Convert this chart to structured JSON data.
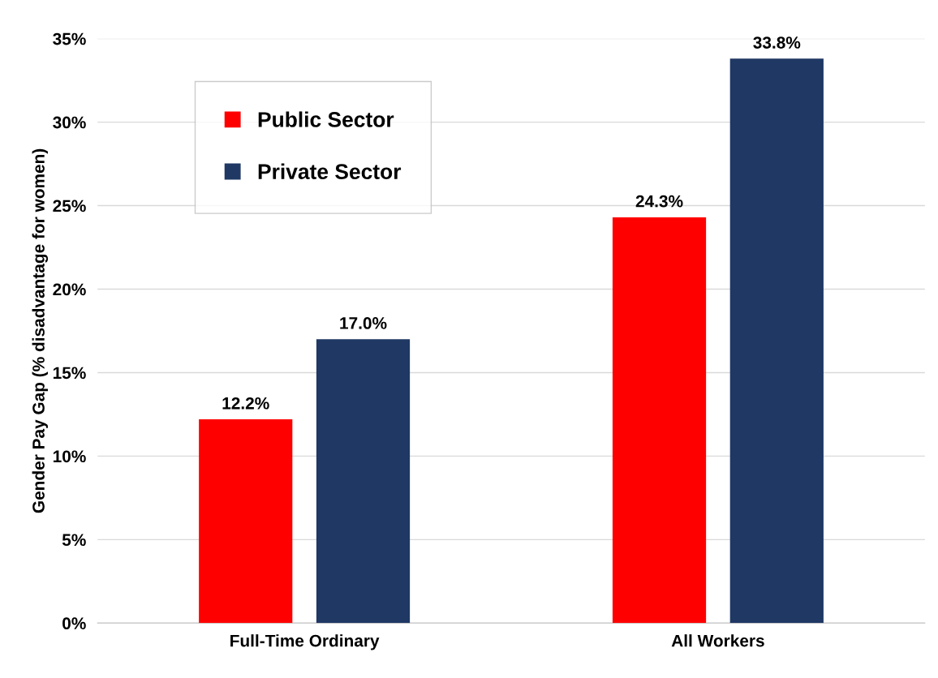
{
  "chart_data": {
    "type": "bar",
    "ylabel": "Gender Pay Gap (% disadvantage for women)",
    "categories": [
      "Full-Time Ordinary",
      "All Workers"
    ],
    "series": [
      {
        "name": "Public Sector",
        "color": "#ff0000",
        "values": [
          12.2,
          24.3
        ],
        "value_labels": [
          "12.2%",
          "24.3%"
        ]
      },
      {
        "name": "Private Sector",
        "color": "#1f3864",
        "values": [
          17.0,
          33.8
        ],
        "value_labels": [
          "17.0%",
          "33.8%"
        ]
      }
    ],
    "ylim": [
      0,
      35
    ],
    "yticks": [
      {
        "value": 0,
        "label": "0%"
      },
      {
        "value": 5,
        "label": "5%"
      },
      {
        "value": 10,
        "label": "10%"
      },
      {
        "value": 15,
        "label": "15%"
      },
      {
        "value": 20,
        "label": "20%"
      },
      {
        "value": 25,
        "label": "25%"
      },
      {
        "value": 30,
        "label": "30%"
      },
      {
        "value": 35,
        "label": "35%"
      }
    ],
    "grid": "y",
    "legend": "top left"
  }
}
